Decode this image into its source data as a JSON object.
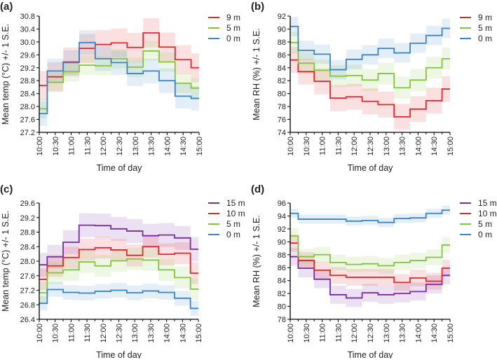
{
  "chart_data": [
    {
      "panel_label": "(a)",
      "type": "line",
      "step": true,
      "error_band": "+/- 1 S.E.",
      "xlabel": "Time of day",
      "ylabel": "Mean temp (°C) +/- 1 S.E.",
      "ylim": [
        27.2,
        30.8
      ],
      "yticks": [
        "27.2",
        "27.6",
        "28.0",
        "28.4",
        "28.8",
        "29.2",
        "29.6",
        "30.0",
        "30.4",
        "30.8"
      ],
      "x": [
        "10:00",
        "10:30",
        "11:00",
        "11:30",
        "12:00",
        "12:30",
        "13:00",
        "13:30",
        "14:00",
        "14:30",
        "15:00"
      ],
      "legend": "right",
      "series": [
        {
          "name": "9 m",
          "color": "#e2262b",
          "se": 0.45,
          "values": [
            28.65,
            28.92,
            29.38,
            29.8,
            29.92,
            29.97,
            29.83,
            30.28,
            29.84,
            29.45,
            29.2
          ]
        },
        {
          "name": "5 m",
          "color": "#84c341",
          "se": 0.3,
          "values": [
            27.93,
            28.75,
            29.08,
            29.28,
            29.26,
            29.48,
            29.22,
            29.72,
            29.38,
            28.72,
            28.57
          ]
        },
        {
          "name": "0 m",
          "color": "#3b84c4",
          "se": 0.38,
          "values": [
            27.78,
            29.1,
            29.36,
            29.98,
            29.48,
            29.36,
            29.02,
            29.1,
            28.8,
            28.32,
            28.25
          ]
        }
      ]
    },
    {
      "panel_label": "(b)",
      "type": "line",
      "step": true,
      "error_band": "+/- 1 S.E.",
      "xlabel": "Time of day",
      "ylabel": "Mean RH (%) +/- 1 S.E.",
      "ylim": [
        74,
        92
      ],
      "yticks": [
        "74",
        "76",
        "78",
        "80",
        "82",
        "84",
        "86",
        "88",
        "90",
        "92"
      ],
      "x": [
        "10:00",
        "10:30",
        "11:00",
        "11:30",
        "12:00",
        "12:30",
        "13:00",
        "13:30",
        "14:00",
        "14:30",
        "15:00"
      ],
      "legend": "right",
      "series": [
        {
          "name": "9 m",
          "color": "#e2262b",
          "se": 2.0,
          "values": [
            85.2,
            83.4,
            81.9,
            79.3,
            79.5,
            78.8,
            78.3,
            76.4,
            77.6,
            78.9,
            80.7
          ]
        },
        {
          "name": "5 m",
          "color": "#84c341",
          "se": 1.7,
          "values": [
            87.9,
            84.7,
            83.6,
            82.7,
            82.8,
            82.1,
            83.1,
            80.9,
            82.1,
            84.0,
            85.4
          ]
        },
        {
          "name": "0 m",
          "color": "#3b84c4",
          "se": 1.5,
          "values": [
            90.4,
            86.7,
            86.1,
            83.7,
            85.3,
            86.0,
            87.0,
            86.3,
            87.8,
            89.0,
            90.1
          ]
        }
      ]
    },
    {
      "panel_label": "(c)",
      "type": "line",
      "step": true,
      "error_band": "+/- 1 S.E.",
      "xlabel": "Time of day",
      "ylabel": "Mean temp (°C) +/- 1 S.E.",
      "ylim": [
        26.4,
        29.6
      ],
      "yticks": [
        "26.4",
        "26.8",
        "27.2",
        "27.6",
        "28.0",
        "28.4",
        "28.8",
        "29.2",
        "29.6"
      ],
      "x": [
        "10:00",
        "10:30",
        "11:00",
        "11:30",
        "12:00",
        "12:30",
        "13:00",
        "13:30",
        "14:00",
        "14:30",
        "15:00"
      ],
      "legend": "right",
      "series": [
        {
          "name": "15 m",
          "color": "#7b2aa6",
          "se": 0.33,
          "values": [
            27.9,
            28.12,
            28.52,
            28.99,
            28.98,
            28.89,
            28.83,
            28.7,
            28.72,
            28.64,
            28.33
          ]
        },
        {
          "name": "10 m",
          "color": "#e2262b",
          "se": 0.3,
          "values": [
            27.5,
            27.87,
            28.1,
            28.32,
            28.37,
            28.31,
            28.16,
            28.4,
            28.19,
            28.22,
            27.67
          ]
        },
        {
          "name": "5 m",
          "color": "#84c341",
          "se": 0.3,
          "values": [
            27.13,
            27.68,
            27.76,
            27.98,
            27.87,
            28.01,
            28.06,
            28.03,
            27.76,
            27.55,
            27.23
          ]
        },
        {
          "name": "0 m",
          "color": "#3b84c4",
          "se": 0.2,
          "values": [
            26.84,
            27.22,
            27.14,
            27.12,
            27.17,
            27.2,
            27.13,
            27.18,
            27.14,
            26.98,
            26.7
          ]
        }
      ]
    },
    {
      "panel_label": "(d)",
      "type": "line",
      "step": true,
      "error_band": "+/- 1 S.E.",
      "xlabel": "Time of day",
      "ylabel": "Mean RH (%) +/- 1 S.E.",
      "ylim": [
        78,
        96
      ],
      "yticks": [
        "78",
        "80",
        "82",
        "84",
        "86",
        "88",
        "90",
        "92",
        "94",
        "96"
      ],
      "x": [
        "10:00",
        "10:30",
        "11:00",
        "11:30",
        "12:00",
        "12:30",
        "13:00",
        "13:30",
        "14:00",
        "14:30",
        "15:00"
      ],
      "legend": "right",
      "series": [
        {
          "name": "15 m",
          "color": "#7b2aa6",
          "se": 1.4,
          "values": [
            87.7,
            85.9,
            84.2,
            81.8,
            81.3,
            82.1,
            81.8,
            82.0,
            82.3,
            83.4,
            84.8
          ]
        },
        {
          "name": "10 m",
          "color": "#e2262b",
          "se": 1.3,
          "values": [
            89.8,
            87.1,
            85.6,
            84.8,
            84.5,
            84.5,
            84.5,
            83.7,
            84.4,
            83.9,
            85.9
          ]
        },
        {
          "name": "5 m",
          "color": "#84c341",
          "se": 1.2,
          "values": [
            90.9,
            87.7,
            88.0,
            86.8,
            86.5,
            86.6,
            86.3,
            86.8,
            87.1,
            87.6,
            89.5
          ]
        },
        {
          "name": "0 m",
          "color": "#3b84c4",
          "se": 0.7,
          "values": [
            94.4,
            93.5,
            93.5,
            93.5,
            93.2,
            93.3,
            93.0,
            93.6,
            93.7,
            94.4,
            94.9
          ]
        }
      ]
    }
  ]
}
